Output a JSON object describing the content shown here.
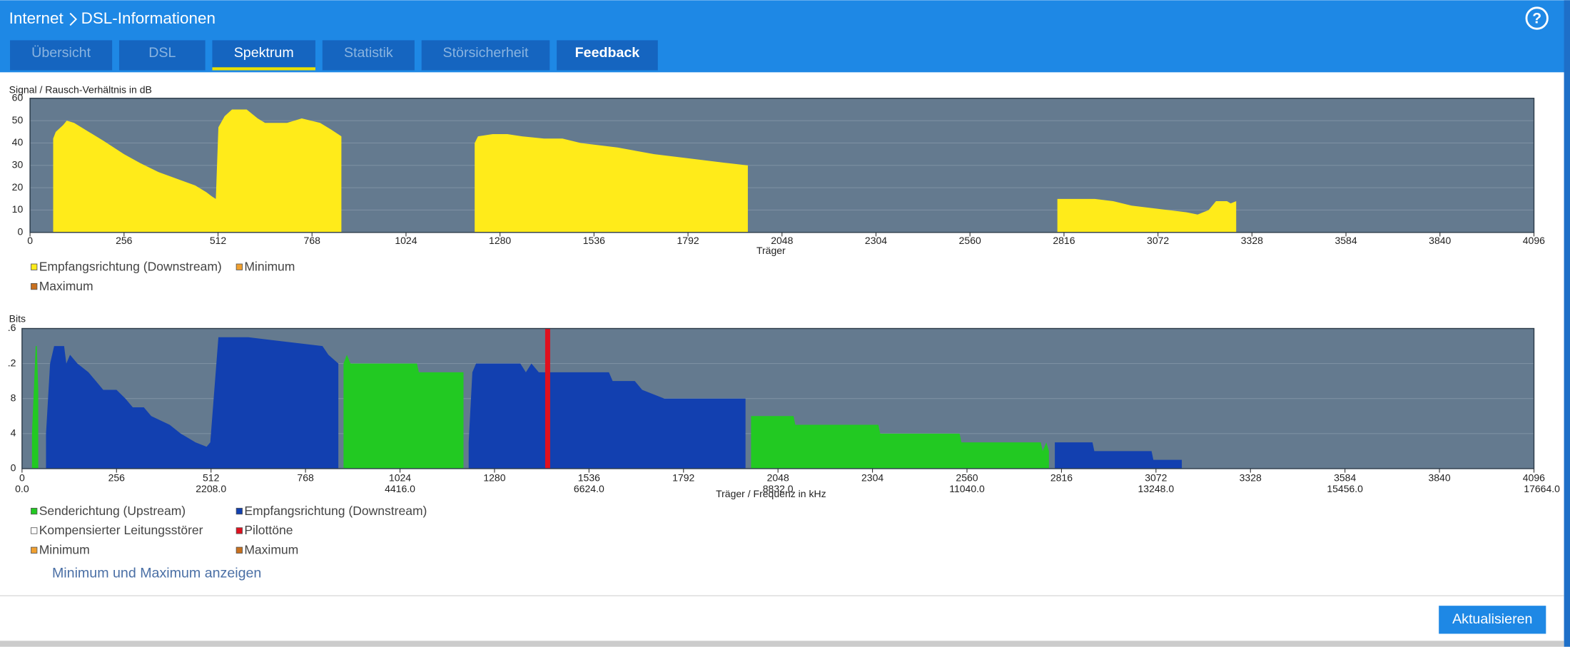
{
  "header": {
    "breadcrumbs": [
      "Internet",
      "DSL-Informationen"
    ],
    "help": "?"
  },
  "tabs": [
    {
      "label": "Übersicht"
    },
    {
      "label": "DSL"
    },
    {
      "label": "Spektrum"
    },
    {
      "label": "Statistik"
    },
    {
      "label": "Störsicherheit"
    },
    {
      "label": "Feedback"
    }
  ],
  "link": "Minimum und Maximum anzeigen",
  "button": "Aktualisieren",
  "chart_data": [
    {
      "type": "area",
      "ylabel": "Signal / Rausch-Verhältnis in dB",
      "xlabel": "Träger",
      "xlim": [
        0,
        4096
      ],
      "xticks": [
        0,
        256,
        512,
        768,
        1024,
        1280,
        1536,
        1792,
        2048,
        2304,
        2560,
        2816,
        3072,
        3328,
        3584,
        3840,
        4096
      ],
      "ylim": [
        0,
        60
      ],
      "yticks": [
        0,
        10,
        20,
        30,
        40,
        50,
        60
      ],
      "grid": true,
      "series": [
        {
          "name": "Empfangsrichtung (Downstream)",
          "color": "#ffeb1a",
          "x": [
            63,
            70,
            90,
            100,
            120,
            160,
            200,
            256,
            300,
            350,
            400,
            450,
            480,
            496,
            506,
            513,
            530,
            550,
            590,
            620,
            640,
            700,
            740,
            790,
            820,
            848,
            1000,
            1211,
            1220,
            1260,
            1300,
            1340,
            1400,
            1450,
            1500,
            1600,
            1700,
            1800,
            1900,
            1955,
            2500,
            2798,
            2900,
            2950,
            3000,
            3050,
            3100,
            3150,
            3180,
            3210,
            3230,
            3260,
            3270,
            3285
          ],
          "values": [
            42,
            45,
            48,
            50,
            49,
            45,
            41,
            35,
            31,
            27,
            24,
            21,
            18,
            16,
            15,
            47,
            52,
            55,
            55,
            51,
            49,
            49,
            51,
            49,
            46,
            43,
            null,
            40,
            43,
            44,
            44,
            43,
            42,
            42,
            40,
            38,
            35,
            33,
            31,
            30,
            null,
            15,
            15,
            14,
            12,
            11,
            10,
            9,
            8,
            10,
            14,
            14,
            13,
            14
          ]
        },
        {
          "name": "Minimum",
          "color": "#f0a030"
        },
        {
          "name": "Maximum",
          "color": "#c8701e"
        }
      ]
    },
    {
      "type": "area",
      "ylabel": "Bits",
      "xlabel": "Träger / Frequenz in kHz",
      "xlim": [
        0,
        4096
      ],
      "xticks": [
        0,
        256,
        512,
        768,
        1024,
        1280,
        1536,
        1792,
        2048,
        2304,
        2560,
        2816,
        3072,
        3328,
        3584,
        3840,
        4096
      ],
      "x2lim": [
        0,
        17664
      ],
      "x2ticks": [
        {
          "value": 0,
          "label": "0.0"
        },
        {
          "value": 2208,
          "label": "2208.0"
        },
        {
          "value": 4416,
          "label": "4416.0"
        },
        {
          "value": 6624,
          "label": "6624.0"
        },
        {
          "value": 8832,
          "label": "8832.0"
        },
        {
          "value": 11040,
          "label": "11040.0"
        },
        {
          "value": 13248,
          "label": "13248.0"
        },
        {
          "value": 15456,
          "label": "15456.0"
        },
        {
          "value": 17664,
          "label": "17664.0"
        }
      ],
      "ylim": [
        0,
        16
      ],
      "yticks": [
        0,
        4,
        8,
        {
          "value": 12,
          "label": ".2"
        },
        {
          "value": 16,
          "label": ".6"
        }
      ],
      "grid": true,
      "series": [
        {
          "name": "Senderichtung (Upstream)",
          "color": "#22c922",
          "x": [
            27,
            37,
            40,
            44,
            500,
            871,
            880,
            890,
            900,
            1070,
            1075,
            1196,
            1600,
            1975,
            2090,
            2095,
            2320,
            2325,
            2540,
            2545,
            2760,
            2765,
            2775,
            2782
          ],
          "values": [
            4,
            14,
            14,
            9,
            null,
            12,
            13,
            12,
            12,
            12,
            11,
            11,
            null,
            6,
            6,
            5,
            5,
            4,
            4,
            3,
            3,
            2,
            3,
            2
          ]
        },
        {
          "name": "Empfangsrichtung (Downstream)",
          "color": "#1240b0",
          "x": [
            65,
            76,
            87,
            114,
            120,
            130,
            150,
            180,
            200,
            220,
            256,
            280,
            300,
            330,
            350,
            400,
            430,
            470,
            500,
            510,
            532,
            613,
            814,
            830,
            857,
            1000,
            1210,
            1220,
            1230,
            1350,
            1365,
            1380,
            1400,
            1590,
            1600,
            1660,
            1680,
            1740,
            1960,
            2500,
            2798,
            2900,
            2905,
            3060,
            3065,
            3142
          ],
          "values": [
            4,
            12,
            14,
            14,
            12,
            13,
            12,
            11,
            10,
            9,
            9,
            8,
            7,
            7,
            6,
            5,
            4,
            3,
            2.5,
            3,
            15,
            15,
            14,
            13,
            12,
            null,
            3,
            11,
            12,
            12,
            11,
            12,
            11,
            11,
            10,
            10,
            9,
            8,
            8,
            null,
            3,
            3,
            2,
            2,
            1,
            1
          ]
        },
        {
          "name": "Kompensierter Leitungsstörer",
          "color": "#ffffff"
        },
        {
          "name": "Pilottöne",
          "color": "#e0101e",
          "x": [
            1424
          ],
          "values": [
            16
          ]
        },
        {
          "name": "Minimum",
          "color": "#f0a030"
        },
        {
          "name": "Maximum",
          "color": "#c8701e"
        }
      ]
    }
  ]
}
